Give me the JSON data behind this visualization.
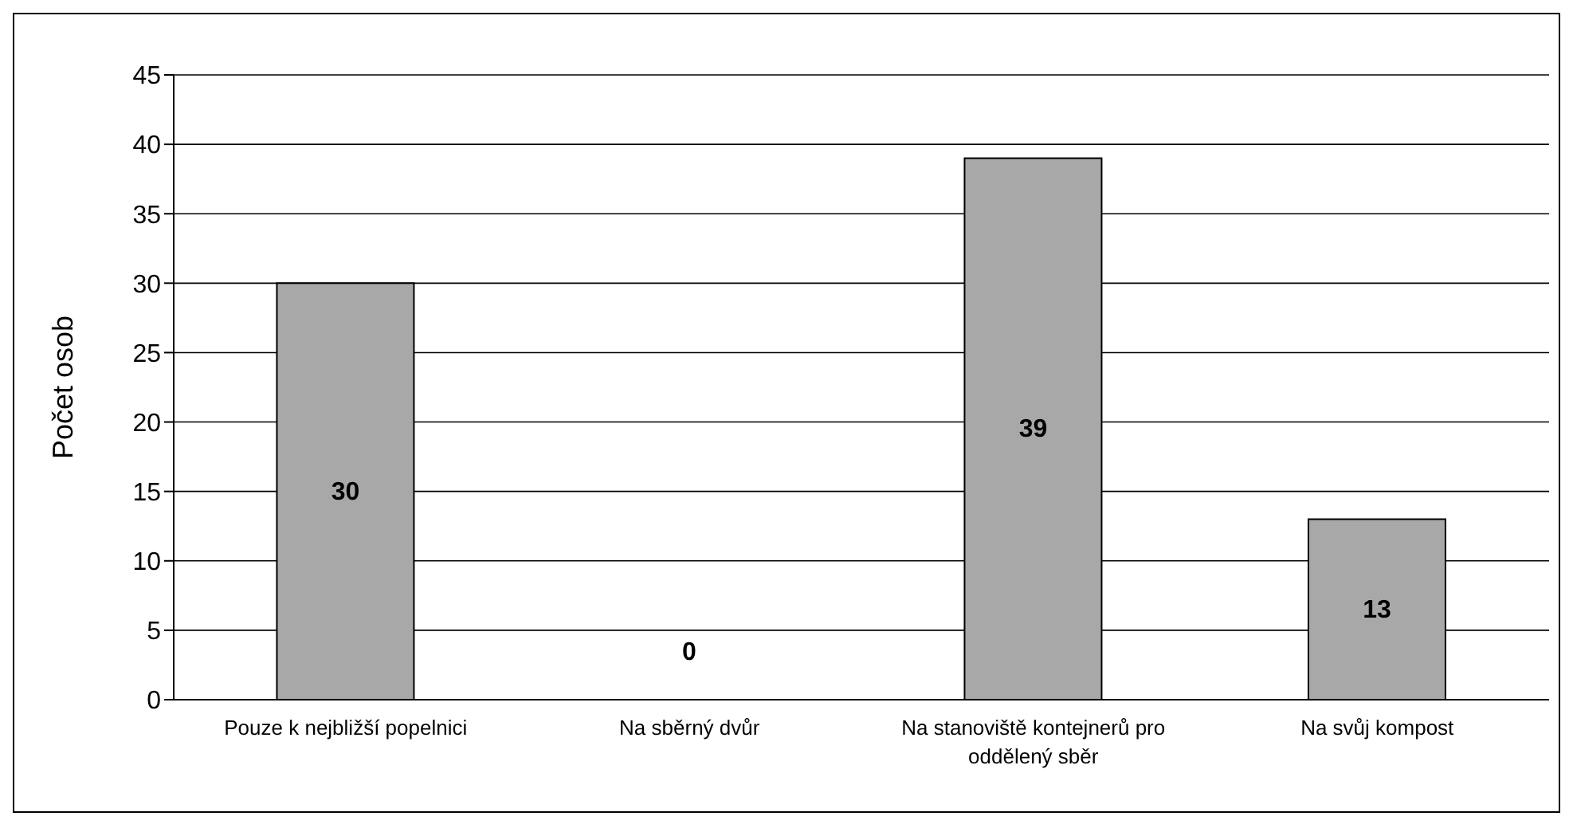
{
  "chart_data": {
    "type": "bar",
    "ylabel": "Počet osob",
    "categories": [
      "Pouze k nejbližší popelnici",
      "Na sběrný dvůr",
      "Na stanoviště kontejnerů pro oddělený sběr",
      "Na svůj kompost"
    ],
    "values": [
      30,
      0,
      39,
      13
    ],
    "color": "#a8a8a8",
    "ylim": [
      0,
      45
    ],
    "yticks": [
      0,
      5,
      10,
      15,
      20,
      25,
      30,
      35,
      40,
      45
    ],
    "grid": "y",
    "data_labels": true
  }
}
